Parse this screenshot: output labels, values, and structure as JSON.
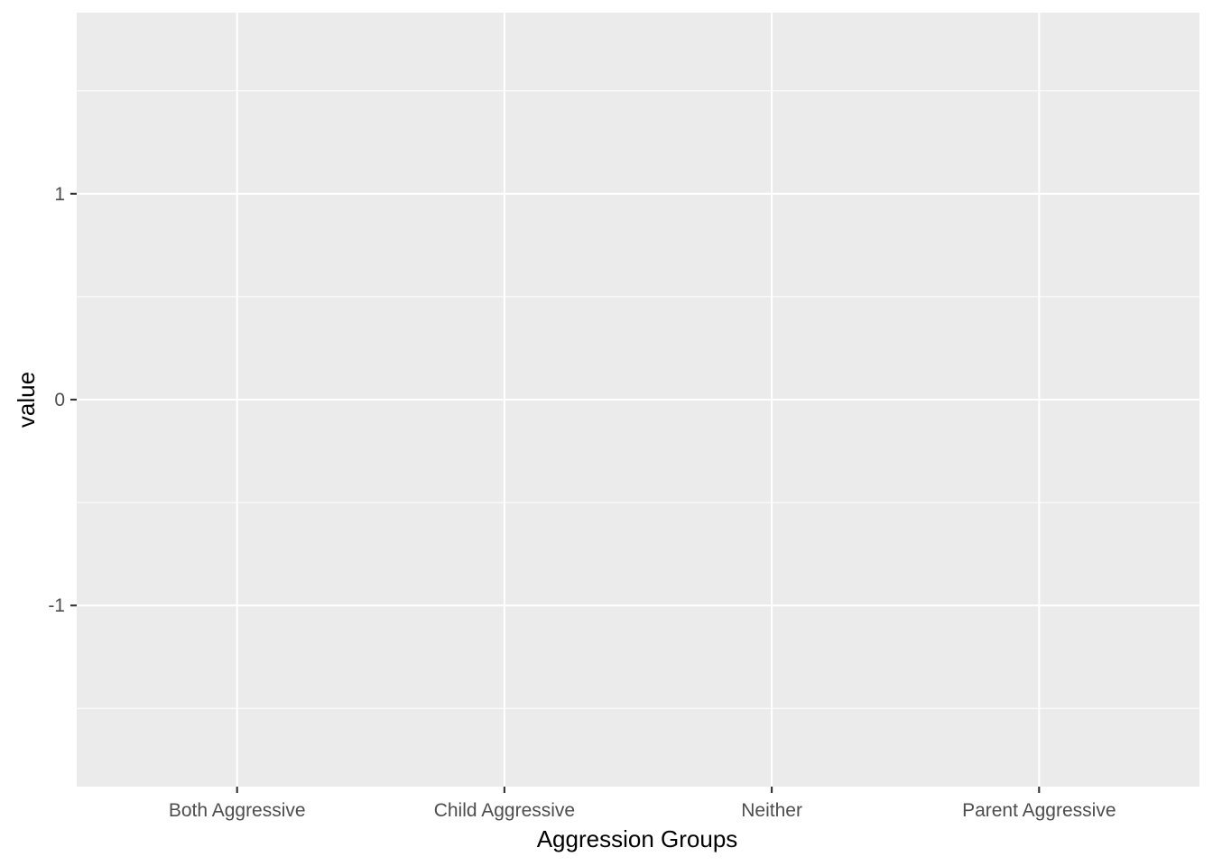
{
  "chart_data": {
    "type": "bar",
    "title": "",
    "xlabel": "Aggression Groups",
    "ylabel": "value",
    "categories": [
      "Both Aggressive",
      "Child Aggressive",
      "Neither",
      "Parent Aggressive"
    ],
    "values": [
      null,
      null,
      null,
      null
    ],
    "ylim": [
      -1.88,
      1.88
    ],
    "yticks": [
      -1,
      0,
      1
    ],
    "ytick_labels": [
      "-1",
      "0",
      "1"
    ],
    "yminor": [
      -1.5,
      -0.5,
      0.5,
      1.5
    ],
    "grid": true,
    "legend": "none",
    "colors": {
      "panel_background": "#ebebeb",
      "grid": "#ffffff",
      "tick_text": "#4d4d4d",
      "tick_mark": "#333333",
      "axis_title": "#000000"
    }
  }
}
